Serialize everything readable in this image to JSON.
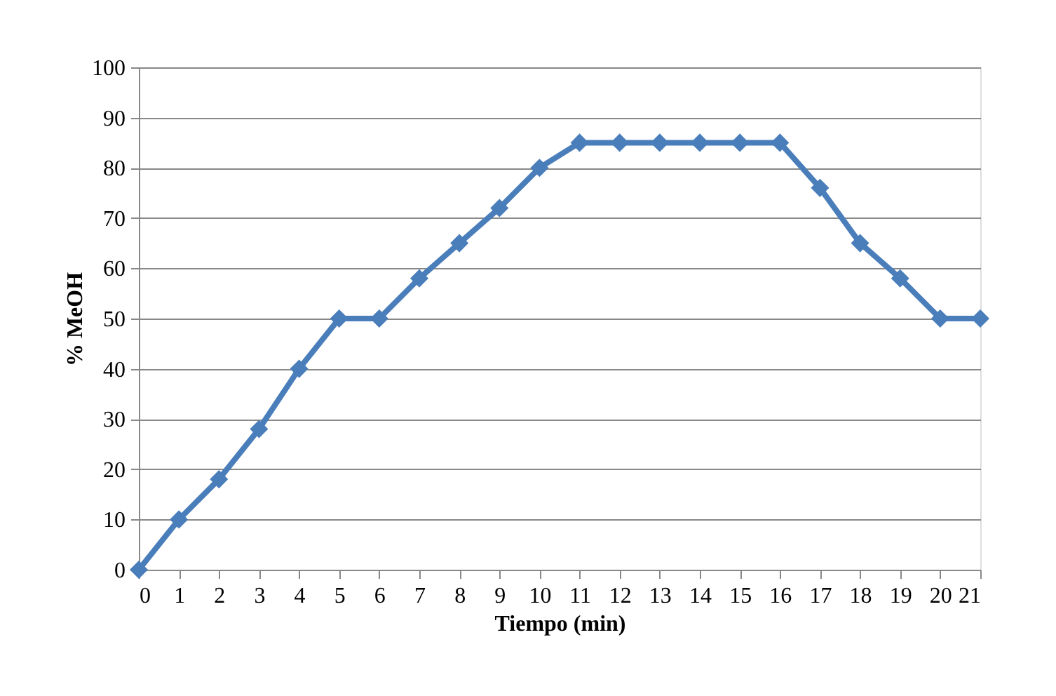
{
  "chart_data": {
    "type": "line",
    "xlabel": "Tiempo (min)",
    "ylabel": "% MeOH",
    "x": [
      0,
      1,
      2,
      3,
      4,
      5,
      6,
      7,
      8,
      9,
      10,
      11,
      12,
      13,
      14,
      15,
      16,
      17,
      18,
      19,
      20,
      21
    ],
    "series": [
      {
        "color": "#4a7ebb",
        "values": [
          0,
          10,
          18,
          28,
          40,
          50,
          50,
          58,
          65,
          72,
          80,
          85,
          85,
          85,
          85,
          85,
          85,
          76,
          65,
          58,
          50,
          50
        ]
      }
    ],
    "xlim": [
      0,
      21
    ],
    "xticks": [
      0,
      1,
      2,
      3,
      4,
      5,
      6,
      7,
      8,
      9,
      10,
      11,
      12,
      13,
      14,
      15,
      16,
      17,
      18,
      19,
      20,
      21
    ],
    "ylim": [
      0,
      100
    ],
    "yticks": [
      0,
      10,
      20,
      30,
      40,
      50,
      60,
      70,
      80,
      90,
      100
    ],
    "grid": "y",
    "marker": "diamond",
    "line_style": "solid"
  }
}
